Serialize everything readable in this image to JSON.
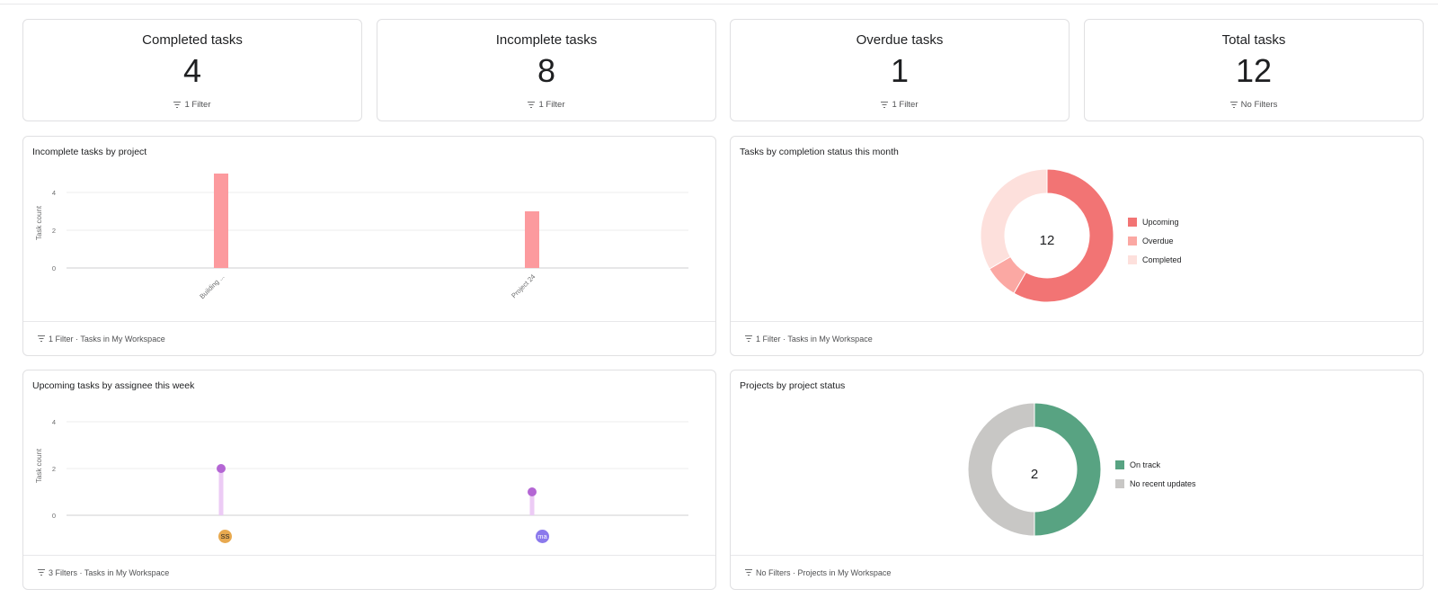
{
  "stats": [
    {
      "title": "Completed tasks",
      "value": "4",
      "filter": "1 Filter"
    },
    {
      "title": "Incomplete tasks",
      "value": "8",
      "filter": "1 Filter"
    },
    {
      "title": "Overdue tasks",
      "value": "1",
      "filter": "1 Filter"
    },
    {
      "title": "Total tasks",
      "value": "12",
      "filter": "No Filters"
    }
  ],
  "charts": {
    "incomplete_by_project": {
      "title": "Incomplete tasks by project",
      "footer": "1 Filter · Tasks in My Workspace",
      "ylabel": "Task count",
      "ticks": [
        "4",
        "2",
        "0"
      ],
      "categories": [
        "Building ...",
        "Project 24"
      ]
    },
    "completion_status": {
      "title": "Tasks by completion status this month",
      "footer": "1 Filter · Tasks in My Workspace",
      "center": "12",
      "legend": [
        "Upcoming",
        "Overdue",
        "Completed"
      ]
    },
    "upcoming_by_assignee": {
      "title": "Upcoming tasks by assignee this week",
      "footer": "3 Filters · Tasks in My Workspace",
      "ylabel": "Task count",
      "ticks": [
        "4",
        "2",
        "0"
      ],
      "assignees": [
        "SS",
        "ma"
      ]
    },
    "project_status": {
      "title": "Projects by project status",
      "footer": "No Filters · Projects in My Workspace",
      "center": "2",
      "legend": [
        "On track",
        "No recent updates"
      ]
    }
  },
  "chart_data": [
    {
      "type": "bar",
      "title": "Incomplete tasks by project",
      "ylabel": "Task count",
      "categories": [
        "Building ...",
        "Project 24"
      ],
      "values": [
        5,
        3
      ],
      "ylim": [
        0,
        5
      ],
      "color": "#fc9a9e"
    },
    {
      "type": "pie",
      "title": "Tasks by completion status this month",
      "labels": [
        "Upcoming",
        "Overdue",
        "Completed"
      ],
      "values": [
        7,
        1,
        4
      ],
      "colors": [
        "#f27474",
        "#fba8a3",
        "#fde0dc"
      ]
    },
    {
      "type": "scatter",
      "title": "Upcoming tasks by assignee this week",
      "ylabel": "Task count",
      "categories": [
        "SS",
        "ma"
      ],
      "values": [
        2,
        1
      ],
      "ylim": [
        0,
        4
      ],
      "color": "#b466d4",
      "stem_color": "#eccbf5"
    },
    {
      "type": "pie",
      "title": "Projects by project status",
      "labels": [
        "On track",
        "No recent updates"
      ],
      "values": [
        1,
        1
      ],
      "colors": [
        "#58a382",
        "#c8c7c5"
      ]
    }
  ],
  "avatar_colors": [
    "#e8a94f",
    "#8b79ec"
  ]
}
